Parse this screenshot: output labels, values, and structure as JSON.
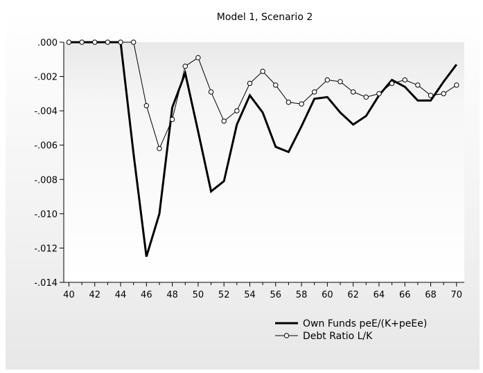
{
  "chart_data": {
    "type": "line",
    "title": "Model 1, Scenario 2",
    "xlabel": "",
    "ylabel": "",
    "x": [
      40,
      41,
      42,
      43,
      44,
      45,
      46,
      47,
      48,
      49,
      50,
      51,
      52,
      53,
      54,
      55,
      56,
      57,
      58,
      59,
      60,
      61,
      62,
      63,
      64,
      65,
      66,
      67,
      68,
      69,
      70
    ],
    "xlim": [
      39.6,
      70.6
    ],
    "ylim": [
      -0.014,
      0.0
    ],
    "x_ticks": [
      40,
      42,
      44,
      46,
      48,
      50,
      52,
      54,
      56,
      58,
      60,
      62,
      64,
      66,
      68,
      70
    ],
    "x_tick_labels": [
      "40",
      "42",
      "44",
      "46",
      "48",
      "50",
      "52",
      "54",
      "56",
      "58",
      "60",
      "62",
      "64",
      "66",
      "68",
      "70"
    ],
    "y_ticks": [
      0.0,
      -0.002,
      -0.004,
      -0.006,
      -0.008,
      -0.01,
      -0.012,
      -0.014
    ],
    "y_tick_labels": [
      ".000",
      "-.002",
      "-.004",
      "-.006",
      "-.008",
      "-.010",
      "-.012",
      "-.014"
    ],
    "grid": false,
    "legend_position": "bottom-right",
    "series": [
      {
        "name": "Own Funds peE/(K+peEe)",
        "color": "#000000",
        "marker": "none",
        "values": [
          0.0,
          0.0,
          0.0,
          0.0,
          0.0,
          -0.0065,
          -0.0125,
          -0.01,
          -0.0038,
          -0.0018,
          -0.0052,
          -0.0087,
          -0.0081,
          -0.0048,
          -0.0031,
          -0.0041,
          -0.0061,
          -0.0064,
          -0.0049,
          -0.0033,
          -0.0032,
          -0.0041,
          -0.0048,
          -0.0043,
          -0.0031,
          -0.0022,
          -0.0026,
          -0.0034,
          -0.0034,
          -0.0023,
          -0.0013
        ]
      },
      {
        "name": "Debt Ratio L/K",
        "color": "#000000",
        "marker": "circle",
        "values": [
          0.0,
          0.0,
          0.0,
          0.0,
          0.0,
          0.0,
          -0.0037,
          -0.0062,
          -0.0045,
          -0.0014,
          -0.0009,
          -0.0029,
          -0.0046,
          -0.004,
          -0.0024,
          -0.0017,
          -0.0025,
          -0.0035,
          -0.0036,
          -0.0029,
          -0.0022,
          -0.0023,
          -0.0029,
          -0.0032,
          -0.003,
          -0.0024,
          -0.0022,
          -0.0025,
          -0.0031,
          -0.003,
          -0.0025
        ]
      }
    ]
  }
}
